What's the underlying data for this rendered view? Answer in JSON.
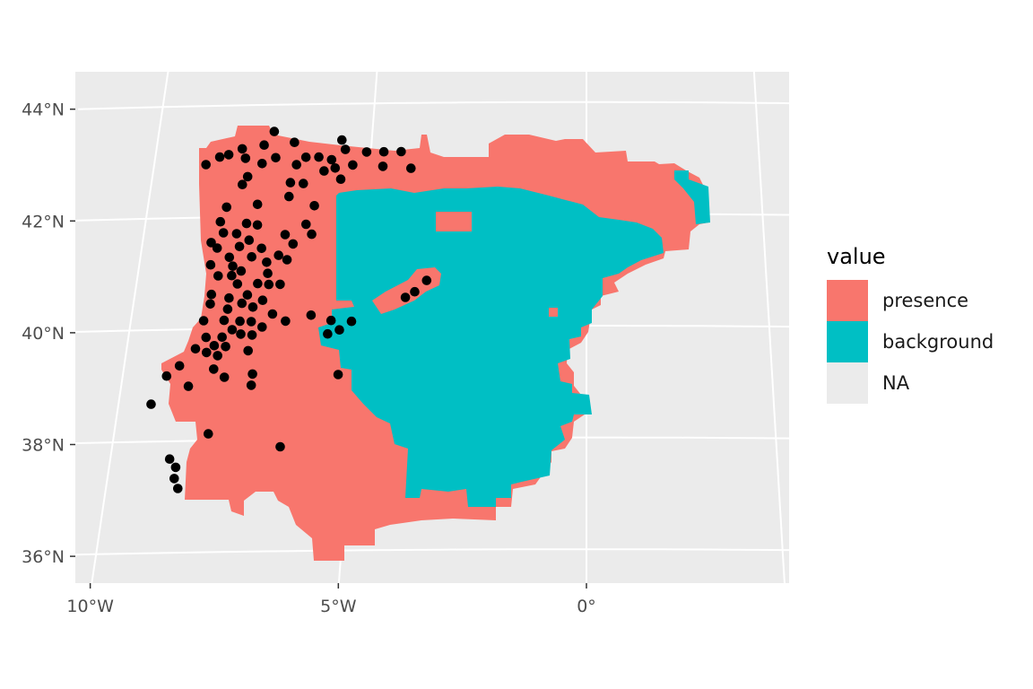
{
  "panel": {
    "background": "#ebebeb",
    "grid_color": "#ffffff"
  },
  "axes": {
    "y_ticks": [
      {
        "value": 44,
        "label": "44°N"
      },
      {
        "value": 42,
        "label": "42°N"
      },
      {
        "value": 40,
        "label": "40°N"
      },
      {
        "value": 38,
        "label": "38°N"
      },
      {
        "value": 36,
        "label": "36°N"
      }
    ],
    "x_ticks": [
      {
        "value": -10,
        "label": "10°W"
      },
      {
        "value": -5,
        "label": "5°W"
      },
      {
        "value": 0,
        "label": "0°"
      }
    ]
  },
  "legend": {
    "title": "value",
    "items": [
      {
        "label": "presence",
        "color": "#f8766d"
      },
      {
        "label": "background",
        "color": "#00bfc4"
      },
      {
        "label": "NA",
        "color": "#ebebeb"
      }
    ]
  },
  "chart_data": {
    "type": "map",
    "layers": [
      "raster",
      "points"
    ],
    "raster_classes": [
      "presence",
      "background"
    ],
    "colors": {
      "presence": "#f8766d",
      "background": "#00bfc4",
      "points": "#000000"
    },
    "points": [
      [
        -7.3,
        43.52
      ],
      [
        -5.7,
        43.35
      ],
      [
        -6.8,
        43.32
      ],
      [
        -7.5,
        43.28
      ],
      [
        -8.0,
        43.22
      ],
      [
        -5.6,
        43.18
      ],
      [
        -5.1,
        43.13
      ],
      [
        -4.7,
        43.13
      ],
      [
        -4.3,
        43.13
      ],
      [
        -8.3,
        43.12
      ],
      [
        -8.5,
        43.08
      ],
      [
        -7.9,
        43.05
      ],
      [
        -7.2,
        43.05
      ],
      [
        -6.5,
        43.05
      ],
      [
        -6.2,
        43.05
      ],
      [
        -5.9,
        43.0
      ],
      [
        -8.8,
        42.95
      ],
      [
        -7.5,
        42.95
      ],
      [
        -6.7,
        42.92
      ],
      [
        -5.4,
        42.9
      ],
      [
        -5.8,
        42.85
      ],
      [
        -4.7,
        42.87
      ],
      [
        -4.05,
        42.83
      ],
      [
        -6.05,
        42.8
      ],
      [
        -7.8,
        42.72
      ],
      [
        -5.65,
        42.65
      ],
      [
        -6.8,
        42.6
      ],
      [
        -6.5,
        42.58
      ],
      [
        -7.9,
        42.58
      ],
      [
        -6.8,
        42.35
      ],
      [
        -7.5,
        42.22
      ],
      [
        -6.2,
        42.18
      ],
      [
        -8.2,
        42.18
      ],
      [
        -8.3,
        41.92
      ],
      [
        -7.7,
        41.88
      ],
      [
        -7.45,
        41.85
      ],
      [
        -6.35,
        41.85
      ],
      [
        -8.2,
        41.72
      ],
      [
        -7.9,
        41.7
      ],
      [
        -6.8,
        41.67
      ],
      [
        -6.2,
        41.67
      ],
      [
        -8.45,
        41.55
      ],
      [
        -7.6,
        41.58
      ],
      [
        -8.3,
        41.45
      ],
      [
        -7.8,
        41.47
      ],
      [
        -7.3,
        41.43
      ],
      [
        -6.6,
        41.5
      ],
      [
        -6.9,
        41.3
      ],
      [
        -7.5,
        41.28
      ],
      [
        -8.0,
        41.28
      ],
      [
        -6.7,
        41.22
      ],
      [
        -7.15,
        41.18
      ],
      [
        -8.4,
        41.15
      ],
      [
        -7.9,
        41.12
      ],
      [
        -7.7,
        41.03
      ],
      [
        -7.1,
        40.98
      ],
      [
        -8.2,
        40.95
      ],
      [
        -7.9,
        40.95
      ],
      [
        -7.75,
        40.8
      ],
      [
        -7.3,
        40.8
      ],
      [
        -7.05,
        40.78
      ],
      [
        -6.8,
        40.78
      ],
      [
        -3.55,
        40.82
      ],
      [
        -8.3,
        40.62
      ],
      [
        -7.5,
        40.6
      ],
      [
        -7.9,
        40.55
      ],
      [
        -7.15,
        40.5
      ],
      [
        -3.8,
        40.62
      ],
      [
        -4.0,
        40.52
      ],
      [
        -8.3,
        40.45
      ],
      [
        -7.6,
        40.45
      ],
      [
        -7.35,
        40.38
      ],
      [
        -7.9,
        40.35
      ],
      [
        -6.9,
        40.25
      ],
      [
        -6.05,
        40.22
      ],
      [
        -8.4,
        40.15
      ],
      [
        -7.95,
        40.15
      ],
      [
        -7.6,
        40.13
      ],
      [
        -7.35,
        40.12
      ],
      [
        -6.6,
        40.12
      ],
      [
        -5.6,
        40.12
      ],
      [
        -5.15,
        40.1
      ],
      [
        -7.1,
        40.02
      ],
      [
        -7.75,
        39.98
      ],
      [
        -5.4,
        39.95
      ],
      [
        -8.3,
        39.85
      ],
      [
        -7.95,
        39.85
      ],
      [
        -7.55,
        39.9
      ],
      [
        -7.3,
        39.88
      ],
      [
        -5.65,
        39.88
      ],
      [
        -7.85,
        39.68
      ],
      [
        -8.1,
        39.7
      ],
      [
        -8.5,
        39.65
      ],
      [
        -7.35,
        39.6
      ],
      [
        -8.25,
        39.58
      ],
      [
        -8.0,
        39.52
      ],
      [
        -8.8,
        39.35
      ],
      [
        -8.05,
        39.28
      ],
      [
        -9.05,
        39.17
      ],
      [
        -7.2,
        39.18
      ],
      [
        -7.8,
        39.13
      ],
      [
        -5.35,
        39.15
      ],
      [
        -8.55,
        38.98
      ],
      [
        -7.2,
        38.98
      ],
      [
        -9.3,
        38.67
      ],
      [
        -8.0,
        38.12
      ],
      [
        -6.45,
        37.87
      ],
      [
        -8.75,
        37.68
      ],
      [
        -8.6,
        37.53
      ],
      [
        -8.6,
        37.33
      ],
      [
        -8.5,
        37.15
      ]
    ]
  }
}
